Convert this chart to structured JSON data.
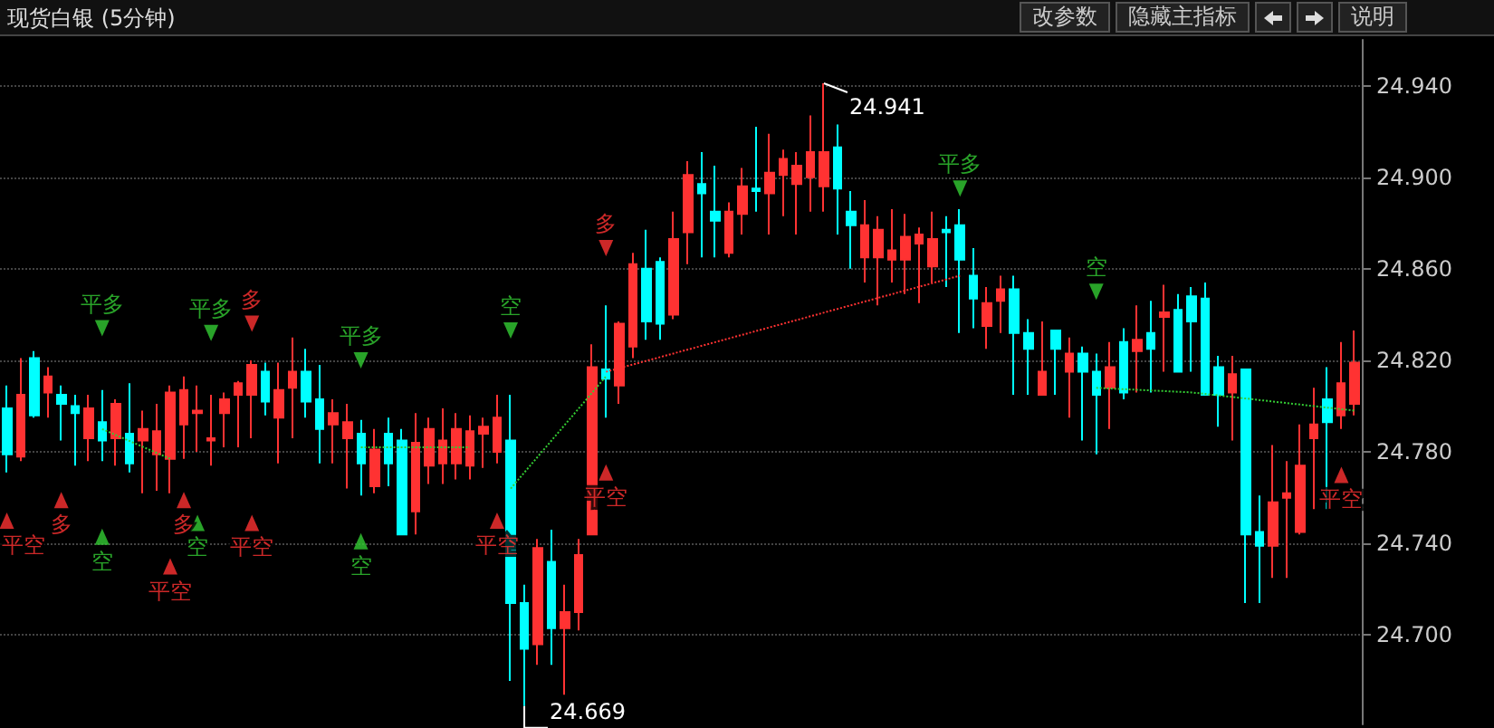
{
  "chart_data": {
    "type": "candlestick",
    "title": "现货白银 (5分钟)",
    "categories": [
      null,
      null,
      null,
      null,
      null,
      null,
      null,
      null,
      null,
      null,
      null,
      null,
      null,
      null,
      null,
      null,
      null,
      null,
      null,
      null,
      null,
      null,
      null,
      null,
      null,
      null,
      null,
      null,
      null,
      null,
      null,
      null,
      null,
      null,
      null,
      null,
      null,
      null,
      null,
      null,
      null,
      null,
      null,
      null,
      null,
      null,
      null,
      null,
      null,
      null,
      null,
      null,
      null,
      null,
      null,
      null,
      null,
      null,
      null,
      null,
      null,
      null,
      null,
      null,
      null,
      null,
      null,
      null,
      null,
      null,
      null,
      null,
      null,
      null,
      null,
      null,
      null,
      null,
      null,
      null,
      null,
      null,
      null,
      null,
      null,
      null,
      null,
      null,
      null,
      null,
      null,
      null,
      null,
      null,
      null,
      null,
      null,
      null,
      null,
      null
    ],
    "ylim": [
      24.661,
      24.96
    ],
    "yticks": [
      {
        "value": 24.7,
        "label": "24.700"
      },
      {
        "value": 24.74,
        "label": "24.740"
      },
      {
        "value": 24.78,
        "label": "24.780"
      },
      {
        "value": 24.82,
        "label": "24.820"
      },
      {
        "value": 24.86,
        "label": "24.860"
      },
      {
        "value": 24.9,
        "label": "24.900"
      },
      {
        "value": 24.94,
        "label": "24.940"
      }
    ],
    "tick_labels": "y",
    "grid": "y",
    "line_style": "dotted",
    "ohlc": [
      [
        24.799,
        24.809,
        24.771,
        24.779
      ],
      [
        24.778,
        24.821,
        24.776,
        24.805
      ],
      [
        24.821,
        24.824,
        24.795,
        24.796
      ],
      [
        24.806,
        24.817,
        24.795,
        24.813
      ],
      [
        24.805,
        24.809,
        24.785,
        24.801
      ],
      [
        24.8,
        24.805,
        24.774,
        24.797
      ],
      [
        24.786,
        24.805,
        24.776,
        24.799
      ],
      [
        24.793,
        24.807,
        24.776,
        24.785
      ],
      [
        24.786,
        24.803,
        24.774,
        24.801
      ],
      [
        24.788,
        24.81,
        24.771,
        24.775
      ],
      [
        24.785,
        24.798,
        24.762,
        24.79
      ],
      [
        24.779,
        24.801,
        24.763,
        24.789
      ],
      [
        24.777,
        24.809,
        24.762,
        24.806
      ],
      [
        24.792,
        24.813,
        24.777,
        24.807
      ],
      [
        24.797,
        24.809,
        24.78,
        24.798
      ],
      [
        24.785,
        24.805,
        24.774,
        24.786
      ],
      [
        24.797,
        24.806,
        24.782,
        24.803
      ],
      [
        24.805,
        24.811,
        24.782,
        24.81
      ],
      [
        24.805,
        24.82,
        24.786,
        24.818
      ],
      [
        24.815,
        24.819,
        24.796,
        24.802
      ],
      [
        24.795,
        24.819,
        24.775,
        24.807
      ],
      [
        24.808,
        24.83,
        24.786,
        24.815
      ],
      [
        24.815,
        24.825,
        24.795,
        24.802
      ],
      [
        24.803,
        24.818,
        24.775,
        24.79
      ],
      [
        24.792,
        24.803,
        24.775,
        24.797
      ],
      [
        24.786,
        24.801,
        24.764,
        24.793
      ],
      [
        24.788,
        24.794,
        24.761,
        24.775
      ],
      [
        24.765,
        24.79,
        24.762,
        24.781
      ],
      [
        24.788,
        24.795,
        24.765,
        24.775
      ],
      [
        24.785,
        24.79,
        24.744,
        24.744
      ],
      [
        24.754,
        24.797,
        24.744,
        24.784
      ],
      [
        24.774,
        24.795,
        24.766,
        24.79
      ],
      [
        24.775,
        24.799,
        24.766,
        24.785
      ],
      [
        24.775,
        24.797,
        24.768,
        24.79
      ],
      [
        24.774,
        24.796,
        24.768,
        24.789
      ],
      [
        24.788,
        24.795,
        24.773,
        24.791
      ],
      [
        24.78,
        24.805,
        24.775,
        24.795
      ],
      [
        24.785,
        24.805,
        24.68,
        24.714
      ],
      [
        24.714,
        24.722,
        24.669,
        24.694
      ],
      [
        24.696,
        24.742,
        24.687,
        24.738
      ],
      [
        24.732,
        24.746,
        24.687,
        24.703
      ],
      [
        24.703,
        24.722,
        24.674,
        24.71
      ],
      [
        24.71,
        24.742,
        24.702,
        24.735
      ],
      [
        24.744,
        24.827,
        24.744,
        24.817
      ],
      [
        24.816,
        24.844,
        24.795,
        24.812
      ],
      [
        24.809,
        24.837,
        24.801,
        24.836
      ],
      [
        24.826,
        24.867,
        24.821,
        24.862
      ],
      [
        24.86,
        24.877,
        24.829,
        24.837
      ],
      [
        24.863,
        24.865,
        24.829,
        24.836
      ],
      [
        24.84,
        24.885,
        24.838,
        24.873
      ],
      [
        24.876,
        24.907,
        24.862,
        24.901
      ],
      [
        24.897,
        24.911,
        24.865,
        24.893
      ],
      [
        24.885,
        24.905,
        24.865,
        24.881
      ],
      [
        24.867,
        24.889,
        24.865,
        24.885
      ],
      [
        24.884,
        24.904,
        24.875,
        24.896
      ],
      [
        24.895,
        24.922,
        24.885,
        24.894
      ],
      [
        24.893,
        24.919,
        24.875,
        24.902
      ],
      [
        24.901,
        24.912,
        24.883,
        24.908
      ],
      [
        24.897,
        24.911,
        24.875,
        24.905
      ],
      [
        24.9,
        24.927,
        24.885,
        24.911
      ],
      [
        24.896,
        24.941,
        24.885,
        24.911
      ],
      [
        24.913,
        24.923,
        24.875,
        24.895
      ],
      [
        24.885,
        24.894,
        24.86,
        24.879
      ],
      [
        24.865,
        24.89,
        24.854,
        24.879
      ],
      [
        24.865,
        24.883,
        24.844,
        24.877
      ],
      [
        24.864,
        24.886,
        24.854,
        24.868
      ],
      [
        24.864,
        24.884,
        24.849,
        24.874
      ],
      [
        24.871,
        24.878,
        24.845,
        24.875
      ],
      [
        24.861,
        24.885,
        24.854,
        24.873
      ],
      [
        24.877,
        24.883,
        24.852,
        24.876
      ],
      [
        24.879,
        24.886,
        24.832,
        24.864
      ],
      [
        24.857,
        24.869,
        24.834,
        24.847
      ],
      [
        24.835,
        24.852,
        24.825,
        24.845
      ],
      [
        24.846,
        24.857,
        24.832,
        24.851
      ],
      [
        24.851,
        24.857,
        24.805,
        24.832
      ],
      [
        24.832,
        24.838,
        24.805,
        24.825
      ],
      [
        24.805,
        24.837,
        24.805,
        24.815
      ],
      [
        24.833,
        24.833,
        24.805,
        24.825
      ],
      [
        24.815,
        24.83,
        24.795,
        24.823
      ],
      [
        24.823,
        24.826,
        24.785,
        24.815
      ],
      [
        24.815,
        24.823,
        24.779,
        24.805
      ],
      [
        24.808,
        24.828,
        24.79,
        24.817
      ],
      [
        24.828,
        24.834,
        24.803,
        24.806
      ],
      [
        24.824,
        24.844,
        24.806,
        24.829
      ],
      [
        24.832,
        24.846,
        24.806,
        24.825
      ],
      [
        24.839,
        24.853,
        24.815,
        24.841
      ],
      [
        24.842,
        24.849,
        24.815,
        24.815
      ],
      [
        24.848,
        24.852,
        24.815,
        24.837
      ],
      [
        24.847,
        24.854,
        24.805,
        24.805
      ],
      [
        24.817,
        24.822,
        24.791,
        24.805
      ],
      [
        24.806,
        24.822,
        24.785,
        24.814
      ],
      [
        24.816,
        24.816,
        24.714,
        24.744
      ],
      [
        24.745,
        24.761,
        24.714,
        24.739
      ],
      [
        24.739,
        24.783,
        24.725,
        24.758
      ],
      [
        24.76,
        24.776,
        24.725,
        24.762
      ],
      [
        24.745,
        24.792,
        24.744,
        24.774
      ],
      [
        24.786,
        24.808,
        24.755,
        24.792
      ],
      [
        24.803,
        24.817,
        24.755,
        24.793
      ],
      [
        24.796,
        24.828,
        24.79,
        24.81
      ],
      [
        24.801,
        24.833,
        24.796,
        24.819
      ]
    ],
    "colors": [
      "#00ffff",
      "#ff3232",
      "#00ffff",
      "#ff3232",
      "#00ffff",
      "#00ffff",
      "#ff3232",
      "#00ffff",
      "#ff3232",
      "#00ffff",
      "#ff3232",
      "#ff3232",
      "#ff3232",
      "#ff3232",
      "#ff3232",
      "#ff3232",
      "#ff3232",
      "#ff3232",
      "#ff3232",
      "#00ffff",
      "#ff3232",
      "#ff3232",
      "#00ffff",
      "#00ffff",
      "#ff3232",
      "#ff3232",
      "#00ffff",
      "#ff3232",
      "#00ffff",
      "#00ffff",
      "#ff3232",
      "#ff3232",
      "#ff3232",
      "#ff3232",
      "#ff3232",
      "#ff3232",
      "#ff3232",
      "#00ffff",
      "#00ffff",
      "#ff3232",
      "#00ffff",
      "#ff3232",
      "#ff3232",
      "#ff3232",
      "#00ffff",
      "#ff3232",
      "#ff3232",
      "#00ffff",
      "#00ffff",
      "#ff3232",
      "#ff3232",
      "#00ffff",
      "#00ffff",
      "#ff3232",
      "#ff3232",
      "#00ffff",
      "#ff3232",
      "#ff3232",
      "#ff3232",
      "#ff3232",
      "#ff3232",
      "#00ffff",
      "#00ffff",
      "#ff3232",
      "#ff3232",
      "#ff3232",
      "#ff3232",
      "#ff3232",
      "#ff3232",
      "#00ffff",
      "#00ffff",
      "#00ffff",
      "#ff3232",
      "#ff3232",
      "#00ffff",
      "#00ffff",
      "#ff3232",
      "#00ffff",
      "#ff3232",
      "#00ffff",
      "#00ffff",
      "#ff3232",
      "#00ffff",
      "#ff3232",
      "#00ffff",
      "#ff3232",
      "#00ffff",
      "#00ffff",
      "#00ffff",
      "#00ffff",
      "#ff3232",
      "#00ffff",
      "#00ffff",
      "#ff3232",
      "#ff3232",
      "#ff3232",
      "#ff3232",
      "#00ffff",
      "#ff3232",
      "#ff3232"
    ],
    "value_labels": [
      null,
      null,
      null,
      null,
      null,
      null,
      null,
      null,
      null,
      null,
      null,
      null,
      null,
      null,
      null,
      null,
      null,
      null,
      null,
      null,
      null,
      null,
      null,
      null,
      null,
      null,
      null,
      null,
      null,
      null,
      null,
      null,
      null,
      null,
      null,
      null,
      null,
      null,
      "24.669",
      null,
      null,
      null,
      null,
      null,
      null,
      null,
      null,
      null,
      null,
      null,
      null,
      null,
      null,
      null,
      null,
      null,
      null,
      null,
      null,
      null,
      "24.941",
      null,
      null,
      null,
      null,
      null,
      null,
      null,
      null,
      null,
      null,
      null,
      null,
      null,
      null,
      null,
      null,
      null,
      null,
      null,
      null,
      null,
      null,
      null,
      null,
      null,
      null,
      null,
      null,
      null,
      null,
      null,
      null,
      null,
      null,
      null,
      null,
      null,
      null,
      null
    ],
    "series": [
      {
        "type": "line",
        "color": "#33cc33",
        "values": [
          null,
          null,
          null,
          null,
          null,
          null,
          null,
          24.79,
          null,
          null,
          null,
          null,
          24.777,
          null,
          null,
          null,
          null,
          null,
          null,
          null,
          null,
          null,
          null,
          null,
          null,
          null,
          null,
          null,
          null,
          null,
          null,
          null,
          null,
          null,
          null,
          null,
          null,
          null,
          null,
          null,
          null,
          null,
          null,
          null,
          null,
          null,
          null,
          null,
          null,
          null,
          null,
          null,
          null,
          null,
          null,
          null,
          null,
          null,
          null,
          null,
          null,
          null,
          null,
          null,
          null,
          null,
          null,
          null,
          null,
          null,
          null,
          null,
          null,
          null,
          null,
          null,
          null,
          null,
          null,
          null,
          null,
          null,
          null,
          null,
          null,
          null,
          null,
          null,
          null,
          null,
          null,
          null,
          null,
          null,
          null,
          null,
          null,
          null,
          null,
          null
        ]
      },
      {
        "type": "line",
        "color": "#33cc33",
        "values": [
          null,
          null,
          null,
          null,
          null,
          null,
          null,
          null,
          null,
          null,
          null,
          null,
          null,
          null,
          null,
          null,
          null,
          null,
          null,
          null,
          null,
          null,
          null,
          null,
          null,
          null,
          24.782,
          null,
          null,
          null,
          null,
          null,
          null,
          null,
          24.782,
          null,
          null,
          null,
          null,
          null,
          null,
          null,
          null,
          null,
          null,
          null,
          null,
          null,
          null,
          null,
          null,
          null,
          null,
          null,
          null,
          null,
          null,
          null,
          null,
          null,
          null,
          null,
          null,
          null,
          null,
          null,
          null,
          null,
          null,
          null,
          null,
          null,
          null,
          null,
          null,
          null,
          null,
          null,
          null,
          null,
          null,
          null,
          null,
          null,
          null,
          null,
          null,
          null,
          null,
          null,
          null,
          null,
          null,
          null,
          null,
          null,
          null,
          null,
          null,
          null
        ]
      },
      {
        "type": "line",
        "color": "#33cc33",
        "values": [
          null,
          null,
          null,
          null,
          null,
          null,
          null,
          null,
          null,
          null,
          null,
          null,
          null,
          null,
          null,
          null,
          null,
          null,
          null,
          null,
          null,
          null,
          null,
          null,
          null,
          null,
          null,
          null,
          null,
          null,
          null,
          null,
          null,
          null,
          null,
          null,
          null,
          24.764,
          null,
          null,
          null,
          null,
          null,
          null,
          24.813,
          null,
          null,
          null,
          null,
          null,
          null,
          null,
          null,
          null,
          null,
          null,
          null,
          null,
          null,
          null,
          null,
          null,
          null,
          null,
          null,
          null,
          null,
          null,
          null,
          null,
          null,
          null,
          null,
          null,
          null,
          null,
          null,
          null,
          null,
          null,
          null,
          null,
          null,
          null,
          null,
          null,
          null,
          null,
          null,
          null,
          null,
          null,
          null,
          null,
          null,
          null,
          null,
          null,
          null,
          null
        ]
      },
      {
        "type": "line",
        "color": "#ff3232",
        "values": [
          null,
          null,
          null,
          null,
          null,
          null,
          null,
          null,
          null,
          null,
          null,
          null,
          null,
          null,
          null,
          null,
          null,
          null,
          null,
          null,
          null,
          null,
          null,
          null,
          null,
          null,
          null,
          null,
          null,
          null,
          null,
          null,
          null,
          null,
          null,
          null,
          null,
          null,
          null,
          null,
          null,
          null,
          null,
          null,
          24.815,
          null,
          null,
          null,
          null,
          null,
          null,
          null,
          null,
          null,
          null,
          null,
          null,
          null,
          null,
          null,
          null,
          null,
          null,
          null,
          null,
          null,
          null,
          null,
          null,
          null,
          24.857,
          null,
          null,
          null,
          null,
          null,
          null,
          null,
          null,
          null,
          null,
          null,
          null,
          null,
          null,
          null,
          null,
          null,
          null,
          null,
          null,
          null,
          null,
          null,
          null,
          null,
          null,
          null,
          null,
          null
        ]
      },
      {
        "type": "line",
        "color": "#33cc33",
        "values": [
          null,
          null,
          null,
          null,
          null,
          null,
          null,
          null,
          null,
          null,
          null,
          null,
          null,
          null,
          null,
          null,
          null,
          null,
          null,
          null,
          null,
          null,
          null,
          null,
          null,
          null,
          null,
          null,
          null,
          null,
          null,
          null,
          null,
          null,
          null,
          null,
          null,
          null,
          null,
          null,
          null,
          null,
          null,
          null,
          null,
          null,
          null,
          null,
          null,
          null,
          null,
          null,
          null,
          null,
          null,
          null,
          null,
          null,
          null,
          null,
          null,
          null,
          null,
          null,
          null,
          null,
          null,
          null,
          null,
          null,
          null,
          null,
          null,
          null,
          null,
          null,
          null,
          null,
          null,
          null,
          24.808,
          null,
          null,
          null,
          null,
          null,
          null,
          24.806,
          null,
          null,
          null,
          null,
          null,
          null,
          null,
          null,
          null,
          null,
          null,
          24.798
        ]
      },
      {
        "type": "scatter",
        "marker": "triangle",
        "color": "#ff3232",
        "values": [
          24.75,
          null,
          null,
          null,
          24.759,
          null,
          null,
          null,
          null,
          null,
          null,
          null,
          24.73,
          24.759,
          null,
          null,
          null,
          null,
          24.749,
          null,
          null,
          null,
          null,
          null,
          null,
          null,
          null,
          null,
          null,
          null,
          null,
          null,
          null,
          null,
          null,
          null,
          24.75,
          null,
          null,
          null,
          null,
          null,
          null,
          null,
          24.771,
          null,
          null,
          null,
          null,
          null,
          null,
          null,
          null,
          null,
          null,
          null,
          null,
          null,
          null,
          null,
          null,
          null,
          null,
          null,
          null,
          null,
          null,
          null,
          null,
          null,
          null,
          null,
          null,
          null,
          null,
          null,
          null,
          null,
          null,
          null,
          null,
          null,
          null,
          null,
          null,
          null,
          null,
          null,
          null,
          null,
          null,
          null,
          null,
          null,
          null,
          null,
          null,
          null,
          24.77,
          null
        ],
        "value_labels": [
          "平空",
          null,
          null,
          null,
          "多",
          null,
          null,
          null,
          null,
          null,
          null,
          null,
          "平空",
          "多",
          null,
          null,
          null,
          null,
          "平空",
          null,
          null,
          null,
          null,
          null,
          null,
          null,
          null,
          null,
          null,
          null,
          null,
          null,
          null,
          null,
          null,
          null,
          "平空",
          null,
          null,
          null,
          null,
          null,
          null,
          null,
          "平空",
          null,
          null,
          null,
          null,
          null,
          null,
          null,
          null,
          null,
          null,
          null,
          null,
          null,
          null,
          null,
          null,
          null,
          null,
          null,
          null,
          null,
          null,
          null,
          null,
          null,
          null,
          null,
          null,
          null,
          null,
          null,
          null,
          null,
          null,
          null,
          null,
          null,
          null,
          null,
          null,
          null,
          null,
          null,
          null,
          null,
          null,
          null,
          null,
          null,
          null,
          null,
          null,
          null,
          "平空",
          null
        ]
      },
      {
        "type": "scatter",
        "marker": "triangle",
        "color": "#33cc33",
        "values": [
          null,
          null,
          null,
          null,
          null,
          null,
          null,
          24.743,
          null,
          null,
          null,
          null,
          null,
          null,
          24.749,
          null,
          null,
          null,
          null,
          null,
          null,
          null,
          null,
          null,
          null,
          null,
          24.741,
          null,
          null,
          null,
          null,
          null,
          null,
          null,
          null,
          null,
          null,
          null,
          null,
          null,
          null,
          null,
          null,
          null,
          null,
          null,
          null,
          null,
          null,
          null,
          null,
          null,
          null,
          null,
          null,
          null,
          null,
          null,
          null,
          null,
          null,
          null,
          null,
          null,
          null,
          null,
          null,
          null,
          null,
          null,
          null,
          null,
          null,
          null,
          null,
          null,
          null,
          null,
          null,
          null,
          null,
          null,
          null,
          null,
          null,
          null,
          null,
          null,
          null,
          null,
          null,
          null,
          null,
          null,
          null,
          null,
          null,
          null,
          null,
          null
        ],
        "value_labels": [
          null,
          null,
          null,
          null,
          null,
          null,
          null,
          "空",
          null,
          null,
          null,
          null,
          null,
          null,
          "空",
          null,
          null,
          null,
          null,
          null,
          null,
          null,
          null,
          null,
          null,
          null,
          "空",
          null,
          null,
          null,
          null,
          null,
          null,
          null,
          null,
          null,
          null,
          null,
          null,
          null,
          null,
          null,
          null,
          null,
          null,
          null,
          null,
          null,
          null,
          null,
          null,
          null,
          null,
          null,
          null,
          null,
          null,
          null,
          null,
          null,
          null,
          null,
          null,
          null,
          null,
          null,
          null,
          null,
          null,
          null,
          null,
          null,
          null,
          null,
          null,
          null,
          null,
          null,
          null,
          null,
          null,
          null,
          null,
          null,
          null,
          null,
          null,
          null,
          null,
          null,
          null,
          null,
          null,
          null,
          null,
          null,
          null,
          null,
          null,
          null
        ]
      },
      {
        "type": "scatter",
        "marker": "triangle",
        "color": "#33cc33",
        "values": [
          null,
          null,
          null,
          null,
          null,
          null,
          null,
          24.834,
          null,
          null,
          null,
          null,
          null,
          null,
          null,
          24.832,
          null,
          null,
          null,
          null,
          null,
          null,
          null,
          null,
          null,
          null,
          24.82,
          null,
          null,
          null,
          null,
          null,
          null,
          null,
          null,
          null,
          null,
          24.833,
          null,
          null,
          null,
          null,
          null,
          null,
          null,
          null,
          null,
          null,
          null,
          null,
          null,
          null,
          null,
          null,
          null,
          null,
          null,
          null,
          null,
          null,
          null,
          null,
          null,
          null,
          null,
          null,
          null,
          null,
          null,
          null,
          24.895,
          null,
          null,
          null,
          null,
          null,
          null,
          null,
          null,
          null,
          24.85,
          null,
          null,
          null,
          null,
          null,
          null,
          null,
          null,
          null,
          null,
          null,
          null,
          null,
          null,
          null,
          null,
          null,
          null,
          null
        ],
        "value_labels": [
          null,
          null,
          null,
          null,
          null,
          null,
          null,
          "平多",
          null,
          null,
          null,
          null,
          null,
          null,
          null,
          "平多",
          null,
          null,
          null,
          null,
          null,
          null,
          null,
          null,
          null,
          null,
          "平多",
          null,
          null,
          null,
          null,
          null,
          null,
          null,
          null,
          null,
          null,
          "空",
          null,
          null,
          null,
          null,
          null,
          null,
          null,
          null,
          null,
          null,
          null,
          null,
          null,
          null,
          null,
          null,
          null,
          null,
          null,
          null,
          null,
          null,
          null,
          null,
          null,
          null,
          null,
          null,
          null,
          null,
          null,
          null,
          "平多",
          null,
          null,
          null,
          null,
          null,
          null,
          null,
          null,
          null,
          "空",
          null,
          null,
          null,
          null,
          null,
          null,
          null,
          null,
          null,
          null,
          null,
          null,
          null,
          null,
          null,
          null,
          null,
          null,
          null
        ]
      },
      {
        "type": "scatter",
        "marker": "triangle",
        "color": "#ff3232",
        "values": [
          null,
          null,
          null,
          null,
          null,
          null,
          null,
          null,
          null,
          null,
          null,
          null,
          null,
          null,
          null,
          null,
          null,
          null,
          24.836,
          null,
          null,
          null,
          null,
          null,
          null,
          null,
          null,
          null,
          null,
          null,
          null,
          null,
          null,
          null,
          null,
          null,
          null,
          null,
          null,
          null,
          null,
          null,
          null,
          null,
          24.869,
          null,
          null,
          null,
          null,
          null,
          null,
          null,
          null,
          null,
          null,
          null,
          null,
          null,
          null,
          null,
          null,
          null,
          null,
          null,
          null,
          null,
          null,
          null,
          null,
          null,
          null,
          null,
          null,
          null,
          null,
          null,
          null,
          null,
          null,
          null,
          null,
          null,
          null,
          null,
          null,
          null,
          null,
          null,
          null,
          null,
          null,
          null,
          null,
          null,
          null,
          null,
          null,
          null,
          null,
          null
        ],
        "value_labels": [
          null,
          null,
          null,
          null,
          null,
          null,
          null,
          null,
          null,
          null,
          null,
          null,
          null,
          null,
          null,
          null,
          null,
          null,
          "多",
          null,
          null,
          null,
          null,
          null,
          null,
          null,
          null,
          null,
          null,
          null,
          null,
          null,
          null,
          null,
          null,
          null,
          null,
          null,
          null,
          null,
          null,
          null,
          null,
          null,
          "多",
          null,
          null,
          null,
          null,
          null,
          null,
          null,
          null,
          null,
          null,
          null,
          null,
          null,
          null,
          null,
          null,
          null,
          null,
          null,
          null,
          null,
          null,
          null,
          null,
          null,
          null,
          null,
          null,
          null,
          null,
          null,
          null,
          null,
          null,
          null,
          null,
          null,
          null,
          null,
          null,
          null,
          null,
          null,
          null,
          null,
          null,
          null,
          null,
          null,
          null,
          null,
          null,
          null,
          null,
          null
        ]
      }
    ],
    "annotations": [
      "改参数",
      "隐藏主指标",
      "说明"
    ]
  }
}
